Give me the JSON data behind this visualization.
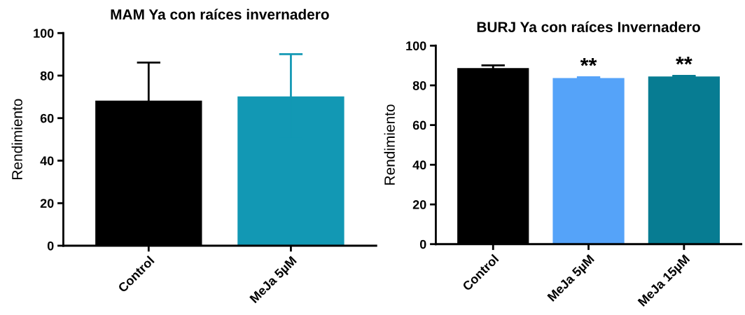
{
  "chart_data": [
    {
      "type": "bar",
      "title": "MAM Ya con raíces invernadero",
      "ylabel": "Rendimiento",
      "categories": [
        "Control",
        "MeJa 5µM"
      ],
      "values": [
        68.2,
        70.2
      ],
      "colors": [
        "#000000",
        "#1298b4"
      ],
      "errors": [
        17.9,
        19.9
      ],
      "ylim": [
        0,
        100
      ],
      "yticks": [
        0,
        20,
        40,
        60,
        80,
        100
      ],
      "grid": false,
      "legend": false
    },
    {
      "type": "bar",
      "title": "BURJ Ya con raíces Invernadero",
      "ylabel": "Rendimiento",
      "categories": [
        "Control",
        "MeJa 5µM",
        "MeJa 15µM"
      ],
      "values": [
        88.7,
        83.7,
        84.5
      ],
      "colors": [
        "#000000",
        "#55a3f9",
        "#077c92"
      ],
      "errors": [
        1.4,
        0.4,
        0.3
      ],
      "ylim": [
        0,
        100
      ],
      "yticks": [
        0,
        20,
        40,
        60,
        80,
        100
      ],
      "grid": false,
      "legend": false,
      "annotations": [
        {
          "text": "**",
          "x": "MeJa 5µM",
          "y": 84.1
        },
        {
          "text": "**",
          "x": "MeJa 15µM",
          "y": 84.8
        }
      ]
    }
  ]
}
